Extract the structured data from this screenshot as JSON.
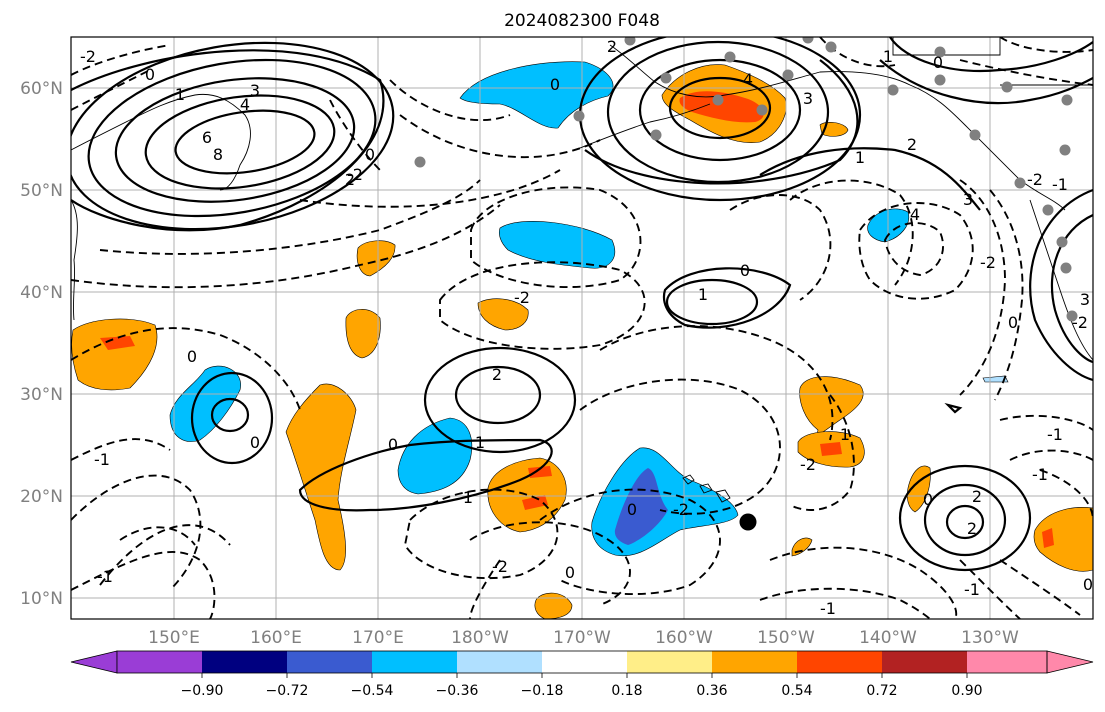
{
  "title": "2024082300 F048",
  "map": {
    "lat_labels": [
      "60°N",
      "50°N",
      "40°N",
      "30°N",
      "20°N",
      "10°N"
    ],
    "lon_labels": [
      "150°E",
      "160°E",
      "170°E",
      "180°W",
      "170°W",
      "160°W",
      "150°W",
      "140°W",
      "130°W"
    ]
  },
  "colorbar": {
    "colors": [
      "#9a3dd6",
      "#000080",
      "#3a5bd0",
      "#00bfff",
      "#b0e0ff",
      "#ffffff",
      "#ffee88",
      "#ffa500",
      "#ff4500",
      "#b22222",
      "#ff88aa"
    ],
    "tick_labels": [
      "−0.90",
      "−0.72",
      "−0.54",
      "−0.36",
      "−0.18",
      "0.18",
      "0.36",
      "0.54",
      "0.72",
      "0.90"
    ]
  },
  "contour_labels": [
    {
      "id": "c1",
      "text": "-2"
    },
    {
      "id": "c2",
      "text": "0"
    },
    {
      "id": "c3",
      "text": "1"
    },
    {
      "id": "c4",
      "text": "3"
    },
    {
      "id": "c5",
      "text": "4"
    },
    {
      "id": "c6",
      "text": "6"
    },
    {
      "id": "c7",
      "text": "8"
    },
    {
      "id": "c8",
      "text": "0"
    },
    {
      "id": "c9",
      "text": "2"
    },
    {
      "id": "c10",
      "text": "0"
    },
    {
      "id": "c11",
      "text": "2"
    },
    {
      "id": "c12",
      "text": "4"
    },
    {
      "id": "c13",
      "text": "3"
    },
    {
      "id": "c14",
      "text": "0"
    },
    {
      "id": "c15",
      "text": "1"
    },
    {
      "id": "c16",
      "text": "-2"
    },
    {
      "id": "c17",
      "text": "1"
    },
    {
      "id": "c18",
      "text": "2"
    },
    {
      "id": "c19",
      "text": "3"
    },
    {
      "id": "c20",
      "text": "0"
    },
    {
      "id": "c21",
      "text": "1"
    },
    {
      "id": "c22",
      "text": "-2"
    },
    {
      "id": "c23",
      "text": "0"
    },
    {
      "id": "c24",
      "text": "-1"
    },
    {
      "id": "c25",
      "text": "2"
    },
    {
      "id": "c26",
      "text": "0"
    },
    {
      "id": "c27",
      "text": "1"
    },
    {
      "id": "c28",
      "text": "-1"
    },
    {
      "id": "c29",
      "text": "1"
    },
    {
      "id": "c30",
      "text": "-2"
    },
    {
      "id": "c31",
      "text": "0"
    },
    {
      "id": "c32",
      "text": "-2"
    },
    {
      "id": "c33",
      "text": "0"
    },
    {
      "id": "c34",
      "text": "-1"
    },
    {
      "id": "c35",
      "text": "-1"
    },
    {
      "id": "c36",
      "text": "0"
    },
    {
      "id": "c37",
      "text": "2"
    },
    {
      "id": "c38",
      "text": "2"
    },
    {
      "id": "c39",
      "text": "-1"
    },
    {
      "id": "c40",
      "text": "-1"
    },
    {
      "id": "c41",
      "text": "-2"
    },
    {
      "id": "c42",
      "text": "1"
    },
    {
      "id": "c43",
      "text": "-2"
    },
    {
      "id": "c44",
      "text": "-1"
    },
    {
      "id": "c45",
      "text": "4"
    },
    {
      "id": "c46",
      "text": "3"
    },
    {
      "id": "c47",
      "text": "-2"
    },
    {
      "id": "c48",
      "text": "0"
    },
    {
      "id": "c49",
      "text": "-2"
    },
    {
      "id": "c50",
      "text": "0"
    },
    {
      "id": "c51",
      "text": "0"
    }
  ]
}
